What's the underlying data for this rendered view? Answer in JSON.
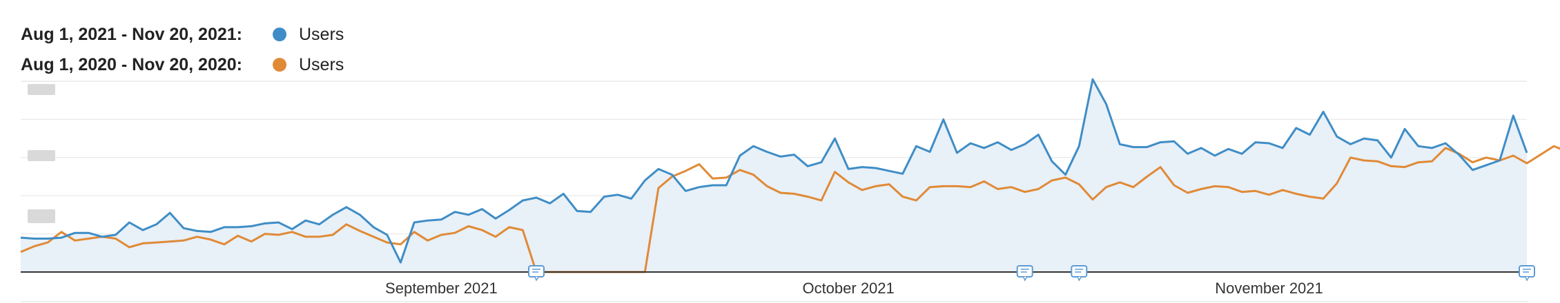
{
  "colors": {
    "current": "#3f8dc6",
    "previous": "#e08a36",
    "area": "#e8f0f8",
    "grid": "#ececec",
    "axis": "#333333",
    "annotation": "#5b9bd5"
  },
  "legend": [
    {
      "range": "Aug 1, 2021 - Nov 20, 2021:",
      "name": "Users",
      "color": "#3f8dc6"
    },
    {
      "range": "Aug 1, 2020 - Nov 20, 2020:",
      "name": "Users",
      "color": "#e08a36"
    }
  ],
  "chart_data": {
    "type": "area",
    "title": "",
    "xlabel": "",
    "ylabel": "",
    "x_start": "2021-08-01",
    "x_end": "2021-11-20",
    "x_ticks": [
      {
        "label": "September 2021",
        "date": "2021-09-01"
      },
      {
        "label": "October 2021",
        "date": "2021-10-01"
      },
      {
        "label": "November 2021",
        "date": "2021-11-01"
      }
    ],
    "ylim": [
      0,
      100
    ],
    "grid": true,
    "legend_position": "top-left",
    "annotations": [
      "2021-09-08",
      "2021-10-14",
      "2021-10-18",
      "2021-11-20"
    ],
    "series": [
      {
        "name": "Users",
        "color": "#3f8dc6",
        "fill": true,
        "values": [
          18,
          17.5,
          17.5,
          18,
          20.5,
          20.5,
          18.5,
          19.5,
          26,
          22,
          25,
          31,
          23,
          21.5,
          21,
          23.5,
          23.5,
          24,
          25.5,
          26,
          22.5,
          27,
          25,
          30,
          34,
          30,
          23.5,
          19.5,
          5,
          26,
          27,
          27.5,
          31.5,
          30,
          33,
          28,
          32.5,
          37.5,
          39,
          36,
          41,
          32,
          31.5,
          39.5,
          40.5,
          38.5,
          48,
          54,
          51,
          42.5,
          44.5,
          45.5,
          45.5,
          61,
          66,
          63,
          60.5,
          61.5,
          55.5,
          57.5,
          70,
          54,
          55,
          54.5,
          53,
          51.5,
          66,
          63,
          80,
          62.5,
          67.5,
          65,
          68,
          64,
          67,
          72,
          58,
          51,
          66,
          101,
          88,
          67,
          65.5,
          65.5,
          68,
          68.5,
          62,
          65,
          61,
          64.5,
          62,
          68,
          67.5,
          65,
          75.5,
          72,
          84,
          71,
          67,
          70,
          69,
          60,
          75,
          66,
          65,
          67.5,
          61.5,
          53.5,
          56,
          58.5,
          82,
          62.5
        ]
      },
      {
        "name": "Users",
        "color": "#e08a36",
        "fill": false,
        "values": [
          10.5,
          13.5,
          15.5,
          21,
          16.5,
          17.5,
          18.5,
          17.5,
          13,
          15,
          15.5,
          16,
          16.5,
          18.5,
          17,
          14.5,
          19,
          16,
          20,
          19.5,
          21,
          18.5,
          18.5,
          19.5,
          25,
          21.5,
          18.5,
          15.5,
          14.5,
          21,
          16.5,
          19.5,
          20.5,
          24,
          22,
          18.5,
          23.5,
          22,
          0,
          0,
          0,
          0,
          0,
          0,
          0,
          0,
          0,
          44,
          50,
          53,
          56.5,
          49,
          49.5,
          53.5,
          51,
          45,
          41.5,
          41,
          39.5,
          37.5,
          52.5,
          47,
          43,
          45,
          46,
          39.5,
          37.5,
          44.5,
          45,
          45,
          44.5,
          47.5,
          43.5,
          44.5,
          42,
          43.5,
          48,
          49.5,
          46,
          38,
          44.5,
          47,
          44.5,
          50,
          55,
          45.5,
          41.5,
          43.5,
          45,
          44.5,
          42,
          42.5,
          40.5,
          43,
          41,
          39.5,
          38.5,
          46.5,
          60,
          58.5,
          58,
          55.5,
          55,
          57.5,
          58,
          65,
          62,
          57.5,
          60,
          58.5,
          61,
          57,
          61.5,
          66,
          63
        ]
      }
    ]
  }
}
